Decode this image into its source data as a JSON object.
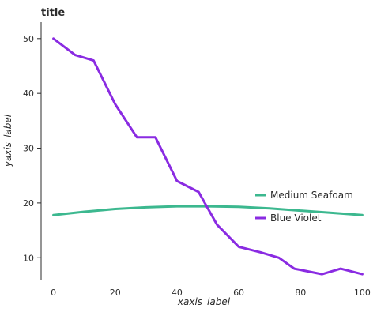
{
  "chart_data": {
    "type": "line",
    "title": "title",
    "xlabel": "xaxis_label",
    "ylabel": "yaxis_label",
    "xlim": [
      -4,
      104
    ],
    "ylim": [
      6,
      53
    ],
    "x_ticks": [
      0,
      20,
      40,
      60,
      80,
      100
    ],
    "y_ticks": [
      10,
      20,
      30,
      40,
      50
    ],
    "grid": false,
    "legend_position": "right",
    "series": [
      {
        "name": "Medium Seafoam",
        "color": "#3cb88f",
        "x": [
          0,
          10,
          20,
          30,
          40,
          50,
          60,
          70,
          80,
          90,
          100
        ],
        "y": [
          17.8,
          18.4,
          18.9,
          19.2,
          19.4,
          19.4,
          19.3,
          19.0,
          18.6,
          18.2,
          17.8
        ]
      },
      {
        "name": "Blue Violet",
        "color": "#8a2be2",
        "x": [
          0,
          7,
          13,
          20,
          27,
          33,
          40,
          47,
          53,
          60,
          67,
          73,
          78,
          87,
          93,
          100
        ],
        "y": [
          50,
          47,
          46,
          38,
          32,
          32,
          24,
          22,
          16,
          12,
          11,
          10,
          8,
          7,
          8,
          7
        ]
      }
    ]
  }
}
